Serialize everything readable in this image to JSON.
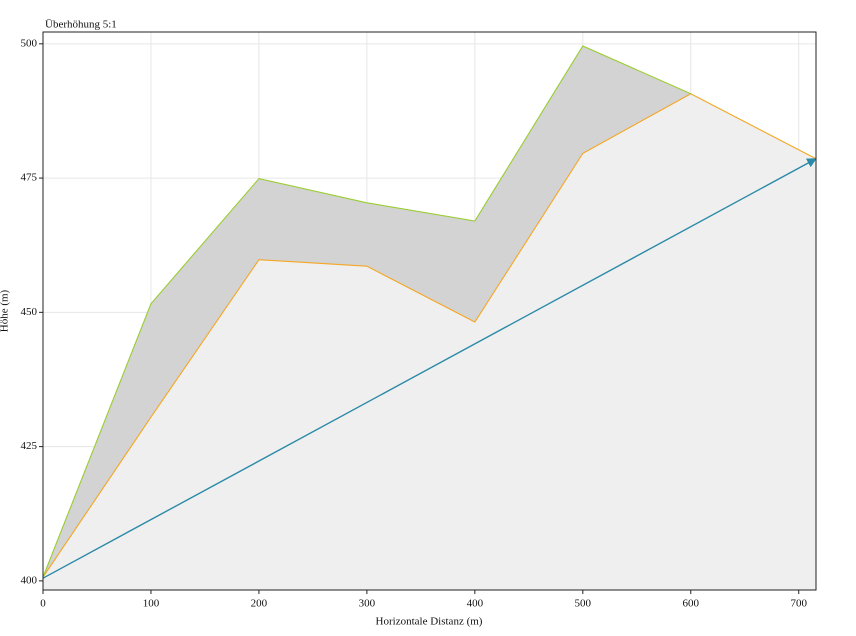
{
  "chart_data": {
    "type": "profile",
    "title": "Überhöhung 5:1",
    "x_label": "Horizontale Distanz (m)",
    "y_label": "Höhe (m)",
    "xlim": [
      0,
      716
    ],
    "ylim": [
      398.3,
      502.2
    ],
    "xticks": [
      0,
      100,
      200,
      300,
      400,
      500,
      600,
      700
    ],
    "yticks": [
      400,
      425,
      450,
      475,
      500
    ],
    "grid": true,
    "series": [
      {
        "color": "#f5a623",
        "fill": "#efefef",
        "x": [
          0,
          100,
          200,
          300,
          400,
          500,
          600,
          716
        ],
        "values": [
          400.7,
          430.5,
          459.8,
          458.6,
          448.2,
          479.6,
          490.7,
          478.6
        ]
      },
      {
        "color": "#9acd32",
        "fill": "#d3d3d3",
        "x": [
          0,
          100,
          200,
          300,
          400,
          500,
          600
        ],
        "values": [
          400.7,
          451.6,
          474.9,
          470.4,
          467.0,
          499.6,
          490.7
        ]
      },
      {
        "color": "#2a8aa8",
        "x": [
          0,
          716
        ],
        "values": [
          400.5,
          478.6
        ],
        "arrow": true
      }
    ]
  }
}
